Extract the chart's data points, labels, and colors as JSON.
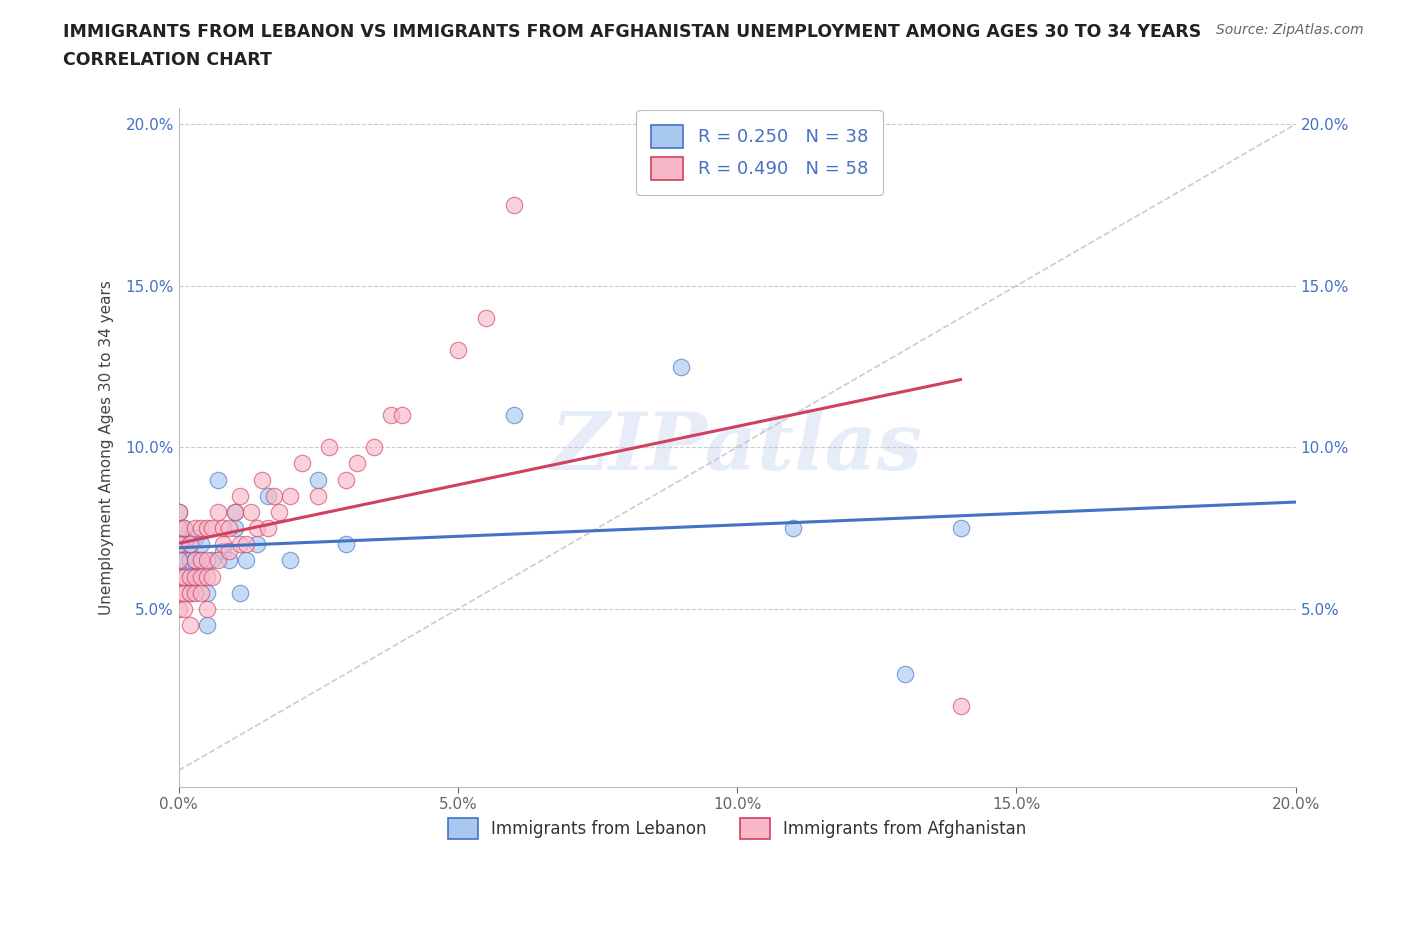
{
  "title_line1": "IMMIGRANTS FROM LEBANON VS IMMIGRANTS FROM AFGHANISTAN UNEMPLOYMENT AMONG AGES 30 TO 34 YEARS",
  "title_line2": "CORRELATION CHART",
  "source_text": "Source: ZipAtlas.com",
  "ylabel": "Unemployment Among Ages 30 to 34 years",
  "xlim": [
    0.0,
    0.2
  ],
  "ylim": [
    0.0,
    0.2
  ],
  "xticks": [
    0.0,
    0.05,
    0.1,
    0.15,
    0.2
  ],
  "yticks": [
    0.05,
    0.1,
    0.15,
    0.2
  ],
  "color_lebanon": "#a8c8f0",
  "color_afghanistan": "#f8b8c8",
  "line_color_lebanon": "#4472c4",
  "line_color_afghanistan": "#d04060",
  "diagonal_color": "#cccccc",
  "R_lebanon": 0.25,
  "N_lebanon": 38,
  "R_afghanistan": 0.49,
  "N_afghanistan": 58,
  "watermark": "ZIPatlas",
  "lebanon_x": [
    0.0,
    0.0,
    0.0,
    0.0,
    0.0,
    0.001,
    0.001,
    0.001,
    0.001,
    0.002,
    0.002,
    0.002,
    0.002,
    0.003,
    0.003,
    0.003,
    0.004,
    0.004,
    0.005,
    0.005,
    0.006,
    0.007,
    0.008,
    0.009,
    0.01,
    0.01,
    0.011,
    0.012,
    0.014,
    0.016,
    0.02,
    0.025,
    0.03,
    0.06,
    0.09,
    0.11,
    0.13,
    0.14
  ],
  "lebanon_y": [
    0.065,
    0.07,
    0.072,
    0.075,
    0.08,
    0.06,
    0.065,
    0.07,
    0.075,
    0.055,
    0.06,
    0.065,
    0.07,
    0.06,
    0.065,
    0.072,
    0.065,
    0.07,
    0.045,
    0.055,
    0.065,
    0.09,
    0.068,
    0.065,
    0.075,
    0.08,
    0.055,
    0.065,
    0.07,
    0.085,
    0.065,
    0.09,
    0.07,
    0.11,
    0.125,
    0.075,
    0.03,
    0.075
  ],
  "afghanistan_x": [
    0.0,
    0.0,
    0.0,
    0.0,
    0.0,
    0.0,
    0.0,
    0.001,
    0.001,
    0.001,
    0.001,
    0.002,
    0.002,
    0.002,
    0.002,
    0.003,
    0.003,
    0.003,
    0.003,
    0.004,
    0.004,
    0.004,
    0.004,
    0.005,
    0.005,
    0.005,
    0.005,
    0.006,
    0.006,
    0.007,
    0.007,
    0.008,
    0.008,
    0.009,
    0.009,
    0.01,
    0.011,
    0.011,
    0.012,
    0.013,
    0.014,
    0.015,
    0.016,
    0.017,
    0.018,
    0.02,
    0.022,
    0.025,
    0.027,
    0.03,
    0.032,
    0.035,
    0.038,
    0.04,
    0.05,
    0.055,
    0.06,
    0.14
  ],
  "afghanistan_y": [
    0.05,
    0.055,
    0.06,
    0.065,
    0.07,
    0.075,
    0.08,
    0.05,
    0.055,
    0.06,
    0.075,
    0.045,
    0.055,
    0.06,
    0.07,
    0.055,
    0.06,
    0.065,
    0.075,
    0.055,
    0.06,
    0.065,
    0.075,
    0.05,
    0.06,
    0.065,
    0.075,
    0.06,
    0.075,
    0.065,
    0.08,
    0.07,
    0.075,
    0.068,
    0.075,
    0.08,
    0.07,
    0.085,
    0.07,
    0.08,
    0.075,
    0.09,
    0.075,
    0.085,
    0.08,
    0.085,
    0.095,
    0.085,
    0.1,
    0.09,
    0.095,
    0.1,
    0.11,
    0.11,
    0.13,
    0.14,
    0.175,
    0.02
  ],
  "legend_label_lebanon": "Immigrants from Lebanon",
  "legend_label_afghanistan": "Immigrants from Afghanistan"
}
